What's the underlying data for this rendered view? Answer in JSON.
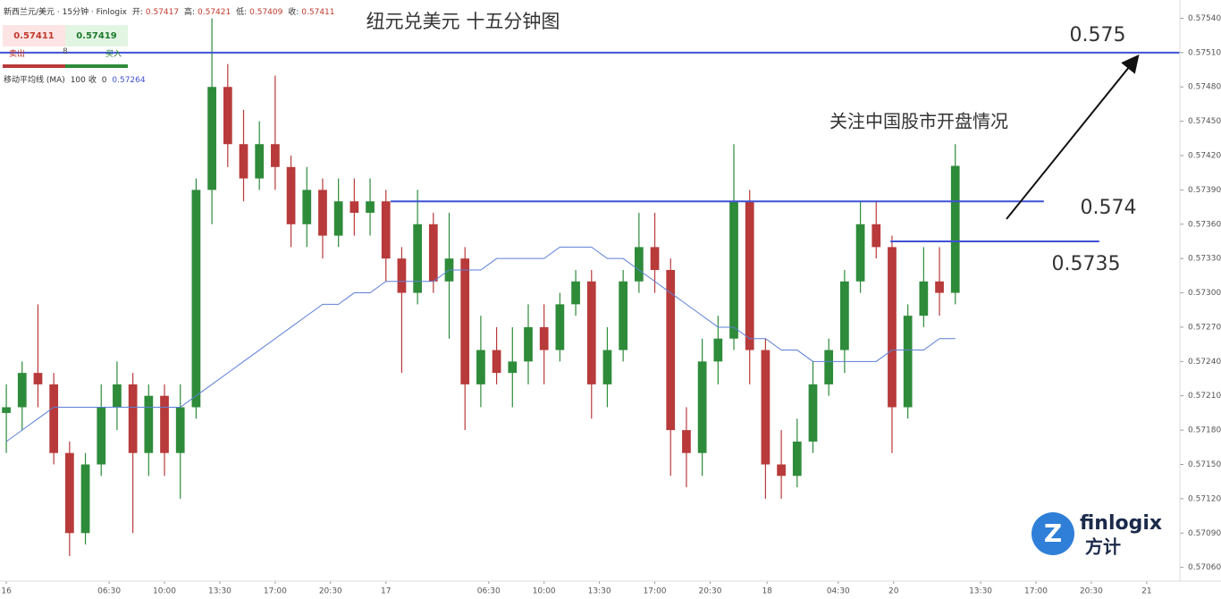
{
  "chart_data": {
    "type": "candlestick",
    "title": "纽元兑美元 十五分钟图",
    "symbol": "新西兰元/美元 · 15分钟 · Finlogix",
    "quote_labels": [
      "开:",
      "高:",
      "低:",
      "收:"
    ],
    "quote_values": [
      0.57417,
      0.57421,
      0.57409,
      0.57411
    ],
    "sell": {
      "price": 0.57411,
      "label": "卖出"
    },
    "buy": {
      "price": 0.57419,
      "label": "买入"
    },
    "spread": 8,
    "indicator": {
      "name": "移动平均线 (MA)",
      "period": 100,
      "source": "收",
      "offset": 0,
      "last": 0.57264
    },
    "up_color": "#2e8b3a",
    "down_color": "#b83a3a",
    "ma_color": "#5b7fd6",
    "x": [
      0,
      1,
      2,
      3,
      4,
      5,
      6,
      7,
      8,
      9,
      10,
      11,
      12,
      13,
      14,
      15,
      16,
      17,
      18,
      19,
      20,
      21,
      22,
      23,
      24,
      25,
      26,
      27,
      28,
      29,
      30,
      31,
      32,
      33,
      34,
      35,
      36,
      37,
      38,
      39,
      40,
      41,
      42,
      43,
      44,
      45,
      46,
      47,
      48,
      49,
      50,
      51,
      52,
      53,
      54,
      55,
      56,
      57,
      58,
      59,
      60
    ],
    "open": [
      0.57195,
      0.572,
      0.5723,
      0.5722,
      0.5716,
      0.5709,
      0.5715,
      0.572,
      0.5722,
      0.5716,
      0.5721,
      0.5716,
      0.572,
      0.5739,
      0.5748,
      0.5743,
      0.574,
      0.5743,
      0.5741,
      0.5736,
      0.5739,
      0.5735,
      0.5738,
      0.5737,
      0.5738,
      0.5733,
      0.573,
      0.5736,
      0.5731,
      0.5733,
      0.5722,
      0.5725,
      0.5723,
      0.5724,
      0.5727,
      0.5725,
      0.5729,
      0.5731,
      0.5722,
      0.5725,
      0.5731,
      0.5734,
      0.5732,
      0.5718,
      0.5716,
      0.5724,
      0.5726,
      0.5738,
      0.5725,
      0.5715,
      0.5714,
      0.5717,
      0.5722,
      0.5725,
      0.5731,
      0.5736,
      0.5734,
      0.572,
      0.5728,
      0.5731,
      0.573
    ],
    "high": [
      0.5722,
      0.5724,
      0.5729,
      0.5723,
      0.5717,
      0.5716,
      0.5722,
      0.5724,
      0.5723,
      0.5722,
      0.5722,
      0.5722,
      0.574,
      0.5754,
      0.575,
      0.5746,
      0.5745,
      0.5749,
      0.5742,
      0.5741,
      0.574,
      0.574,
      0.574,
      0.574,
      0.5739,
      0.5734,
      0.5739,
      0.5737,
      0.5737,
      0.5734,
      0.5728,
      0.5727,
      0.5727,
      0.5729,
      0.5729,
      0.573,
      0.5732,
      0.5732,
      0.5727,
      0.5732,
      0.5737,
      0.5737,
      0.5733,
      0.572,
      0.5726,
      0.5728,
      0.5743,
      0.5739,
      0.5726,
      0.5718,
      0.5719,
      0.5724,
      0.5726,
      0.5732,
      0.5738,
      0.5738,
      0.5735,
      0.5729,
      0.5734,
      0.5734,
      0.5743
    ],
    "low": [
      0.5716,
      0.5718,
      0.572,
      0.5715,
      0.5707,
      0.5708,
      0.5714,
      0.5718,
      0.5709,
      0.5714,
      0.5714,
      0.5712,
      0.5719,
      0.5736,
      0.5741,
      0.5738,
      0.5739,
      0.5739,
      0.5734,
      0.5734,
      0.5733,
      0.5734,
      0.5735,
      0.5735,
      0.5731,
      0.5723,
      0.5729,
      0.573,
      0.5726,
      0.5718,
      0.572,
      0.5722,
      0.572,
      0.5722,
      0.5722,
      0.5724,
      0.5728,
      0.5719,
      0.572,
      0.5724,
      0.573,
      0.573,
      0.5714,
      0.5713,
      0.5714,
      0.5722,
      0.5725,
      0.5722,
      0.5712,
      0.5712,
      0.5713,
      0.5716,
      0.5721,
      0.5723,
      0.573,
      0.5733,
      0.5716,
      0.5719,
      0.5727,
      0.5728,
      0.5729
    ],
    "close": [
      0.572,
      0.5723,
      0.5722,
      0.5716,
      0.5709,
      0.5715,
      0.572,
      0.5722,
      0.5716,
      0.5721,
      0.5716,
      0.572,
      0.5739,
      0.5748,
      0.5743,
      0.574,
      0.5743,
      0.5741,
      0.5736,
      0.5739,
      0.5735,
      0.5738,
      0.5737,
      0.5738,
      0.5733,
      0.573,
      0.5736,
      0.5731,
      0.5733,
      0.5722,
      0.5725,
      0.5723,
      0.5724,
      0.5727,
      0.5725,
      0.5729,
      0.5731,
      0.5722,
      0.5725,
      0.5731,
      0.5734,
      0.5732,
      0.5718,
      0.5716,
      0.5724,
      0.5726,
      0.5738,
      0.5725,
      0.5715,
      0.5714,
      0.5717,
      0.5722,
      0.5725,
      0.5731,
      0.5736,
      0.5734,
      0.572,
      0.5728,
      0.5731,
      0.573,
      0.57411
    ],
    "ma": [
      0.5717,
      0.5718,
      0.5719,
      0.572,
      0.572,
      0.572,
      0.572,
      0.572,
      0.572,
      0.572,
      0.572,
      0.572,
      0.5721,
      0.5722,
      0.5723,
      0.5724,
      0.5725,
      0.5726,
      0.5727,
      0.5728,
      0.5729,
      0.5729,
      0.573,
      0.573,
      0.5731,
      0.5731,
      0.5731,
      0.5731,
      0.5732,
      0.5732,
      0.5732,
      0.5733,
      0.5733,
      0.5733,
      0.5733,
      0.5734,
      0.5734,
      0.5734,
      0.5733,
      0.5733,
      0.5732,
      0.5731,
      0.573,
      0.5729,
      0.5728,
      0.5727,
      0.5727,
      0.5726,
      0.5726,
      0.5725,
      0.5725,
      0.5724,
      0.5724,
      0.5724,
      0.5724,
      0.5724,
      0.5725,
      0.5725,
      0.5725,
      0.5726,
      0.5726
    ],
    "levels": [
      {
        "value": 0.5751,
        "label": "0.575",
        "from": -0.4,
        "to": 74.2,
        "color": "#3f51d6"
      },
      {
        "value": 0.5738,
        "label": "0.574",
        "from": 24.3,
        "to": 65.6,
        "color": "#3f51d6"
      },
      {
        "value": 0.57345,
        "label": "0.5735",
        "from": 55.9,
        "to": 69.1,
        "color": "#3f51d6"
      }
    ],
    "annotation": "关注中国股市开盘情况",
    "xlim": [
      -0.4,
      74.2
    ],
    "ylim": [
      0.57048,
      0.57556
    ],
    "xticks": [
      {
        "value": 0,
        "label": "16"
      },
      {
        "value": 6.5,
        "label": "06:30"
      },
      {
        "value": 10,
        "label": "10:00"
      },
      {
        "value": 13.5,
        "label": "13:30"
      },
      {
        "value": 17,
        "label": "17:00"
      },
      {
        "value": 20.5,
        "label": "20:30"
      },
      {
        "value": 24,
        "label": "17"
      },
      {
        "value": 30.5,
        "label": "06:30"
      },
      {
        "value": 34,
        "label": "10:00"
      },
      {
        "value": 37.5,
        "label": "13:30"
      },
      {
        "value": 41,
        "label": "17:00"
      },
      {
        "value": 44.5,
        "label": "20:30"
      },
      {
        "value": 48.1,
        "label": "18"
      },
      {
        "value": 52.6,
        "label": "04:30"
      },
      {
        "value": 56.1,
        "label": "20"
      },
      {
        "value": 61.6,
        "label": "13:30"
      },
      {
        "value": 65.1,
        "label": "17:00"
      },
      {
        "value": 68.6,
        "label": "20:30"
      },
      {
        "value": 72.1,
        "label": "21"
      }
    ],
    "yticks": [
      {
        "value": 0.5706,
        "label": "0.57060"
      },
      {
        "value": 0.5709,
        "label": "0.57090"
      },
      {
        "value": 0.5712,
        "label": "0.57120"
      },
      {
        "value": 0.5715,
        "label": "0.57150"
      },
      {
        "value": 0.5718,
        "label": "0.57180"
      },
      {
        "value": 0.5721,
        "label": "0.57210"
      },
      {
        "value": 0.5724,
        "label": "0.57240"
      },
      {
        "value": 0.5727,
        "label": "0.57270"
      },
      {
        "value": 0.573,
        "label": "0.57300"
      },
      {
        "value": 0.5733,
        "label": "0.57330"
      },
      {
        "value": 0.5736,
        "label": "0.57360"
      },
      {
        "value": 0.5739,
        "label": "0.57390"
      },
      {
        "value": 0.5742,
        "label": "0.57420"
      },
      {
        "value": 0.5745,
        "label": "0.57450"
      },
      {
        "value": 0.5748,
        "label": "0.57480"
      },
      {
        "value": 0.5751,
        "label": "0.57510"
      },
      {
        "value": 0.5754,
        "label": "0.57540"
      }
    ],
    "logo": {
      "name": "finlogix",
      "sub": "方计"
    }
  }
}
